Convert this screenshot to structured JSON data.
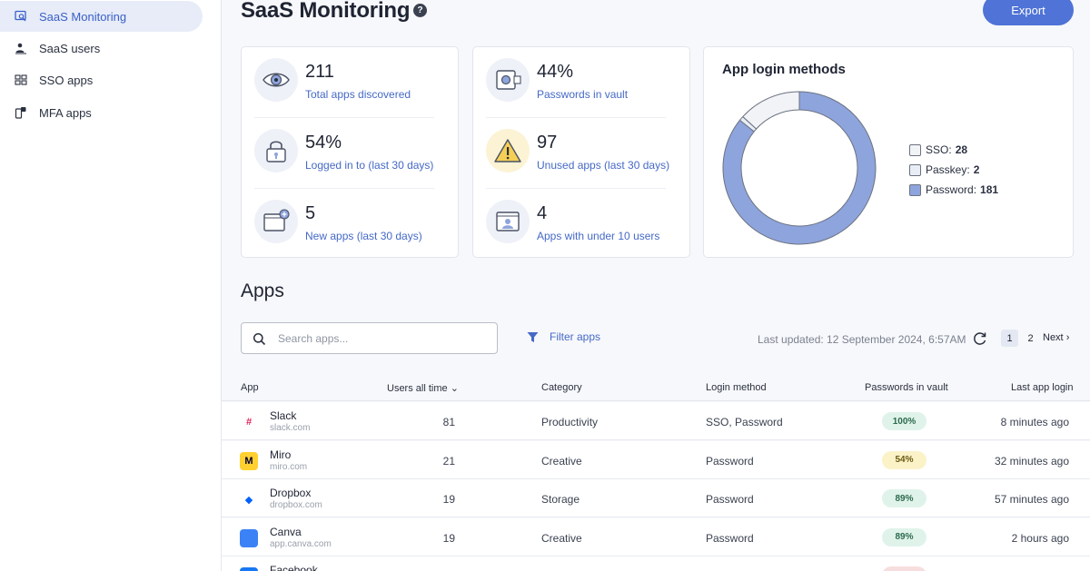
{
  "sidebar": {
    "items": [
      {
        "label": "SaaS Monitoring",
        "icon": "monitor-search-icon",
        "active": true
      },
      {
        "label": "SaaS users",
        "icon": "users-icon",
        "active": false
      },
      {
        "label": "SSO apps",
        "icon": "sso-grid-icon",
        "active": false
      },
      {
        "label": "MFA apps",
        "icon": "mfa-phone-icon",
        "active": false
      }
    ]
  },
  "header": {
    "title": "SaaS Monitoring",
    "help_glyph": "?",
    "export_label": "Export"
  },
  "stats": {
    "left": [
      {
        "value": "211",
        "label": "Total apps discovered",
        "icon": "eye-icon"
      },
      {
        "value": "54%",
        "label": "Logged in to (last 30 days)",
        "icon": "lock-icon"
      },
      {
        "value": "5",
        "label": "New apps (last 30 days)",
        "icon": "new-window-icon"
      }
    ],
    "middle": [
      {
        "value": "44%",
        "label": "Passwords in vault",
        "icon": "vault-icon"
      },
      {
        "value": "97",
        "label": "Unused apps (last 30 days)",
        "icon": "warning-icon"
      },
      {
        "value": "4",
        "label": "Apps with under 10 users",
        "icon": "user-window-icon"
      }
    ]
  },
  "chart_data": {
    "type": "pie",
    "title": "App login methods",
    "categories": [
      "SSO",
      "Passkey",
      "Password"
    ],
    "values": [
      28,
      2,
      181
    ],
    "legend_labels": [
      "SSO:",
      "Passkey:",
      "Password:"
    ],
    "colors": [
      "#f1f3f7",
      "#e9edf5",
      "#8ea4dc"
    ],
    "legend": "right"
  },
  "apps_section": {
    "title": "Apps",
    "search_placeholder": "Search apps...",
    "filter_label": "Filter apps",
    "last_updated": "Last updated: 12 September 2024, 6:57AM",
    "pages": [
      "1",
      "2"
    ],
    "current_page": "1",
    "next_label": "Next",
    "next_glyph": "›",
    "columns": {
      "app": "App",
      "users": "Users all time",
      "sort_glyph": "⌄",
      "category": "Category",
      "login": "Login method",
      "vault": "Passwords in vault",
      "last_login": "Last app login"
    },
    "rows": [
      {
        "name": "Slack",
        "domain": "slack.com",
        "users": "81",
        "category": "Productivity",
        "login": "SSO, Password",
        "vault": "100%",
        "vault_status": "green",
        "last_login": "8 minutes ago",
        "logo_glyph": "#",
        "logo_bg": "#ffffff",
        "logo_fg": "#e01e5a",
        "icon": "slack-logo-icon"
      },
      {
        "name": "Miro",
        "domain": "miro.com",
        "users": "21",
        "category": "Creative",
        "login": "Password",
        "vault": "54%",
        "vault_status": "yellow",
        "last_login": "32 minutes ago",
        "logo_glyph": "M",
        "logo_bg": "#ffd02f",
        "logo_fg": "#050038",
        "icon": "miro-logo-icon"
      },
      {
        "name": "Dropbox",
        "domain": "dropbox.com",
        "users": "19",
        "category": "Storage",
        "login": "Password",
        "vault": "89%",
        "vault_status": "green",
        "last_login": "57 minutes ago",
        "logo_glyph": "◆",
        "logo_bg": "#ffffff",
        "logo_fg": "#0061fe",
        "icon": "dropbox-logo-icon"
      },
      {
        "name": "Canva",
        "domain": "app.canva.com",
        "users": "19",
        "category": "Creative",
        "login": "Password",
        "vault": "89%",
        "vault_status": "green",
        "last_login": "2 hours ago",
        "logo_glyph": "",
        "logo_bg": "#3b82f6",
        "logo_fg": "#ffffff",
        "icon": "canva-logo-icon"
      },
      {
        "name": "Facebook",
        "domain": "",
        "users": "",
        "category": "",
        "login": "",
        "vault": "",
        "vault_status": "red",
        "last_login": "",
        "logo_glyph": "f",
        "logo_bg": "#1877f2",
        "logo_fg": "#ffffff",
        "icon": "facebook-logo-icon"
      }
    ]
  }
}
